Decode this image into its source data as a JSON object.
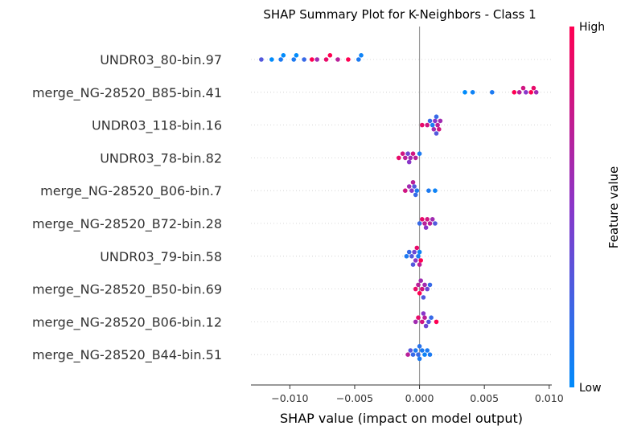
{
  "chart_data": {
    "type": "scatter",
    "subtype": "beeswarm",
    "title": "SHAP Summary Plot for K-Neighbors - Class 1",
    "xlabel": "SHAP value (impact on model output)",
    "ylabel": "",
    "xlim": [
      -0.013,
      0.0102
    ],
    "x_ticks": [
      -0.01,
      -0.005,
      0.0,
      0.005,
      0.01
    ],
    "x_tick_labels": [
      "−0.010",
      "−0.005",
      "0.000",
      "0.005",
      "0.010"
    ],
    "zero_line": true,
    "grid": "horizontal dotted per feature",
    "colorbar": {
      "title": "Feature value",
      "high_label": "High",
      "low_label": "Low",
      "low_color": "#008bfb",
      "high_color": "#ff0052"
    },
    "features": [
      {
        "name": "UNDR03_80-bin.97",
        "points": [
          [
            -0.0122,
            0.3
          ],
          [
            -0.0114,
            0.0
          ],
          [
            -0.0107,
            0.1
          ],
          [
            -0.0105,
            0.0
          ],
          [
            -0.0097,
            0.1
          ],
          [
            -0.0095,
            0.0
          ],
          [
            -0.0089,
            0.2
          ],
          [
            -0.0083,
            1.0
          ],
          [
            -0.0079,
            0.6
          ],
          [
            -0.0072,
            0.9
          ],
          [
            -0.0069,
            1.0
          ],
          [
            -0.0063,
            0.7
          ],
          [
            -0.0055,
            1.0
          ],
          [
            -0.0047,
            0.1
          ],
          [
            -0.0045,
            0.05
          ]
        ]
      },
      {
        "name": "merge_NG-28520_B85-bin.41",
        "points": [
          [
            0.0035,
            0.0
          ],
          [
            0.0041,
            0.05
          ],
          [
            0.0056,
            0.1
          ],
          [
            0.0073,
            1.0
          ],
          [
            0.0077,
            0.7
          ],
          [
            0.008,
            0.8
          ],
          [
            0.0082,
            0.5
          ],
          [
            0.0086,
            1.0
          ],
          [
            0.0088,
            0.9
          ],
          [
            0.009,
            0.6
          ]
        ]
      },
      {
        "name": "UNDR03_118-bin.16",
        "points": [
          [
            0.0002,
            0.9
          ],
          [
            0.0006,
            0.8
          ],
          [
            0.0008,
            0.2
          ],
          [
            0.001,
            0.1
          ],
          [
            0.0011,
            0.6
          ],
          [
            0.0012,
            0.5
          ],
          [
            0.0013,
            0.2
          ],
          [
            0.0014,
            0.7
          ],
          [
            0.0015,
            0.8
          ],
          [
            0.0016,
            0.6
          ],
          [
            0.0013,
            0.3
          ]
        ]
      },
      {
        "name": "UNDR03_78-bin.82",
        "points": [
          [
            -0.0016,
            0.9
          ],
          [
            -0.0013,
            0.8
          ],
          [
            -0.0011,
            0.7
          ],
          [
            -0.0009,
            0.4
          ],
          [
            -0.0008,
            0.5
          ],
          [
            -0.0007,
            0.6
          ],
          [
            -0.0005,
            0.8
          ],
          [
            -0.0003,
            0.7
          ],
          [
            0.0,
            0.1
          ]
        ]
      },
      {
        "name": "merge_NG-28520_B06-bin.7",
        "points": [
          [
            -0.0011,
            0.8
          ],
          [
            -0.0008,
            0.6
          ],
          [
            -0.0006,
            0.5
          ],
          [
            -0.0004,
            0.3
          ],
          [
            -0.0003,
            0.2
          ],
          [
            -0.0002,
            0.1
          ],
          [
            0.0007,
            0.1
          ],
          [
            0.0012,
            0.05
          ],
          [
            -0.0005,
            0.7
          ]
        ]
      },
      {
        "name": "merge_NG-28520_B72-bin.28",
        "points": [
          [
            0.0,
            0.2
          ],
          [
            0.0002,
            0.9
          ],
          [
            0.0004,
            0.7
          ],
          [
            0.0006,
            0.8
          ],
          [
            0.0008,
            0.7
          ],
          [
            0.001,
            0.6
          ],
          [
            0.0012,
            0.3
          ],
          [
            0.0005,
            0.5
          ]
        ]
      },
      {
        "name": "UNDR03_79-bin.58",
        "points": [
          [
            -0.001,
            0.1
          ],
          [
            -0.0008,
            0.2
          ],
          [
            -0.0006,
            0.3
          ],
          [
            -0.0004,
            0.4
          ],
          [
            -0.0003,
            0.5
          ],
          [
            -0.0001,
            0.1
          ],
          [
            0.0,
            0.05
          ],
          [
            0.0001,
            1.0
          ],
          [
            -0.0002,
            0.9
          ],
          [
            0.0,
            0.7
          ],
          [
            -0.0005,
            0.3
          ]
        ]
      },
      {
        "name": "merge_NG-28520_B50-bin.69",
        "points": [
          [
            -0.0003,
            0.9
          ],
          [
            -0.0001,
            0.7
          ],
          [
            0.0,
            1.0
          ],
          [
            0.0002,
            0.8
          ],
          [
            0.0004,
            0.6
          ],
          [
            0.0006,
            0.4
          ],
          [
            0.0008,
            0.2
          ],
          [
            0.0001,
            0.6
          ],
          [
            0.0003,
            0.3
          ]
        ]
      },
      {
        "name": "merge_NG-28520_B06-bin.12",
        "points": [
          [
            -0.0003,
            0.6
          ],
          [
            -0.0001,
            0.9
          ],
          [
            0.0002,
            0.8
          ],
          [
            0.0004,
            0.7
          ],
          [
            0.0005,
            0.4
          ],
          [
            0.0007,
            0.3
          ],
          [
            0.0009,
            0.2
          ],
          [
            0.0013,
            1.0
          ],
          [
            0.0003,
            0.5
          ]
        ]
      },
      {
        "name": "merge_NG-28520_B44-bin.51",
        "points": [
          [
            -0.0009,
            0.7
          ],
          [
            -0.0007,
            0.3
          ],
          [
            -0.0005,
            0.2
          ],
          [
            -0.0003,
            0.1
          ],
          [
            -0.0001,
            0.2
          ],
          [
            0.0,
            0.1
          ],
          [
            0.0002,
            0.1
          ],
          [
            0.0004,
            0.05
          ],
          [
            0.0006,
            0.1
          ],
          [
            0.0008,
            0.1
          ],
          [
            0.0,
            0.15
          ]
        ]
      }
    ]
  }
}
